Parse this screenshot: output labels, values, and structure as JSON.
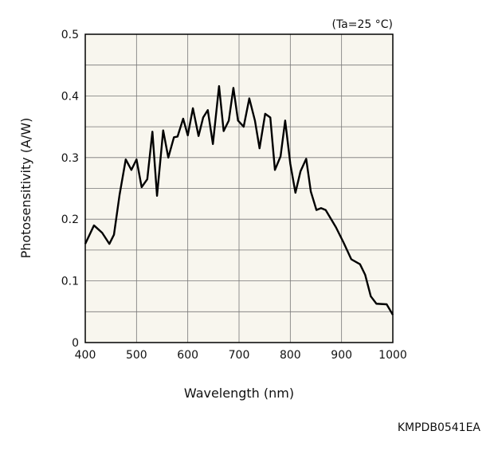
{
  "chart_data": {
    "type": "line",
    "title": "(Ta=25 °C)",
    "x_label": "Wavelength (nm)",
    "y_label": "Photosensitivity (A/W)",
    "note": "KMPDB0541EA",
    "xlim": [
      400,
      1000
    ],
    "xticks": [
      400,
      500,
      600,
      700,
      800,
      900,
      1000
    ],
    "ylim": [
      0,
      0.5
    ],
    "yticks": [
      0,
      0.1,
      0.2,
      0.3,
      0.4,
      0.5
    ],
    "yminor": [
      0.05,
      0.15,
      0.25,
      0.35,
      0.45
    ],
    "grid": true,
    "series": [
      {
        "name": "Photosensitivity",
        "color": "#000000",
        "x": [
          400,
          417,
          433,
          447,
          456,
          467,
          479,
          490,
          500,
          510,
          521,
          531,
          540,
          552,
          562,
          573,
          580,
          591,
          600,
          610,
          621,
          630,
          639,
          649,
          661,
          670,
          680,
          689,
          698,
          709,
          720,
          731,
          740,
          751,
          761,
          770,
          781,
          790,
          800,
          810,
          820,
          831,
          840,
          851,
          860,
          869,
          889,
          904,
          919,
          936,
          946,
          957,
          968,
          988,
          1000
        ],
        "values": [
          0.16,
          0.19,
          0.178,
          0.16,
          0.175,
          0.24,
          0.297,
          0.28,
          0.297,
          0.252,
          0.265,
          0.342,
          0.238,
          0.344,
          0.3,
          0.333,
          0.334,
          0.363,
          0.336,
          0.38,
          0.335,
          0.365,
          0.377,
          0.322,
          0.416,
          0.343,
          0.36,
          0.413,
          0.36,
          0.35,
          0.396,
          0.36,
          0.315,
          0.371,
          0.365,
          0.28,
          0.302,
          0.36,
          0.29,
          0.243,
          0.278,
          0.298,
          0.245,
          0.215,
          0.218,
          0.215,
          0.187,
          0.162,
          0.135,
          0.127,
          0.11,
          0.075,
          0.063,
          0.062,
          0.045
        ]
      }
    ]
  }
}
